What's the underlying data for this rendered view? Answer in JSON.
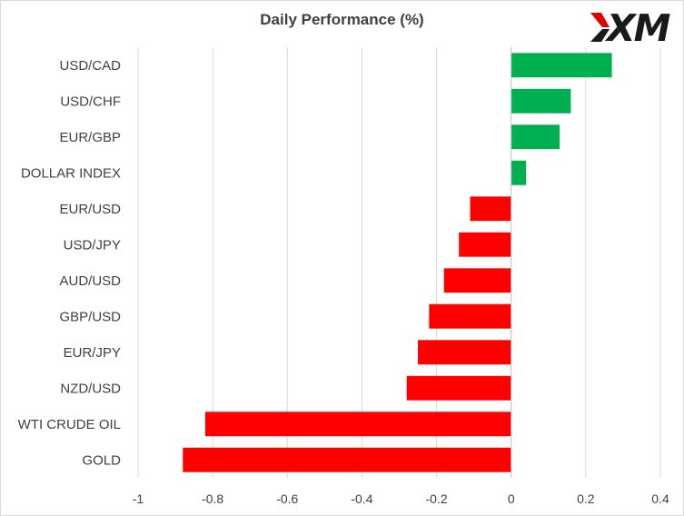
{
  "chart_data": {
    "type": "bar",
    "orientation": "horizontal",
    "title": "Daily Performance (%)",
    "categories": [
      "USD/CAD",
      "USD/CHF",
      "EUR/GBP",
      "DOLLAR INDEX",
      "EUR/USD",
      "USD/JPY",
      "AUD/USD",
      "GBP/USD",
      "EUR/JPY",
      "NZD/USD",
      "WTI CRUDE OIL",
      "GOLD"
    ],
    "values": [
      0.27,
      0.16,
      0.13,
      0.04,
      -0.11,
      -0.14,
      -0.18,
      -0.22,
      -0.25,
      -0.28,
      -0.82,
      -0.88
    ],
    "xlim": [
      -1,
      0.4
    ],
    "xticks": [
      -1,
      -0.8,
      -0.6,
      -0.4,
      -0.2,
      0,
      0.2,
      0.4
    ],
    "xtick_labels": [
      "-1",
      "-0.8",
      "-0.6",
      "-0.4",
      "-0.2",
      "0",
      "0.2",
      "0.4"
    ],
    "grid": "vertical",
    "colors": {
      "positive": "#00b050",
      "negative": "#ff0000",
      "grid": "#d9d9d9",
      "axis": "#bfbfbf"
    }
  },
  "logo": {
    "text": "XM",
    "accent": "#e10000"
  }
}
